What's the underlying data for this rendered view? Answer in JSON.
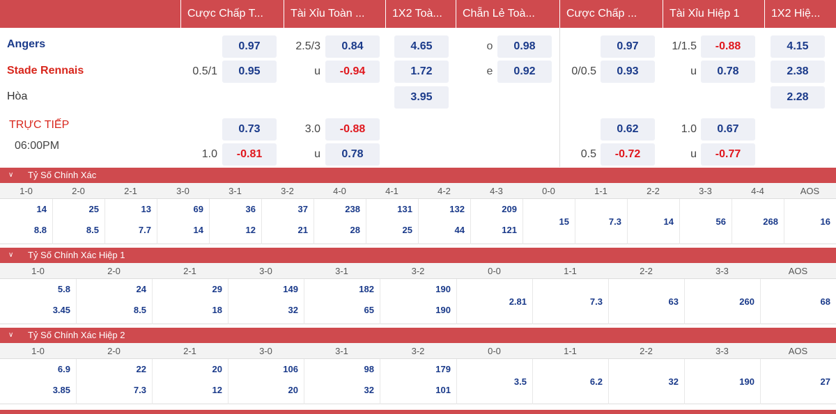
{
  "header": {
    "columns": [
      "Cược Chấp T...",
      "Tài Xỉu Toàn ...",
      "1X2 Toà...",
      "Chẵn Lẻ Toà...",
      "Cược Chấp ...",
      "Tài Xỉu Hiệp 1",
      "1X2 Hiệ..."
    ]
  },
  "match": {
    "home": "Angers",
    "away": "Stade Rennais",
    "draw": "Hòa",
    "status": "TRỰC TIẾP",
    "time": "06:00PM",
    "ft_handicap": {
      "line": "0.5/1",
      "home": "0.97",
      "away": "0.95"
    },
    "ft_ou": {
      "line": "2.5/3",
      "under_label": "u",
      "over": "0.84",
      "under": "-0.94"
    },
    "ft_1x2": {
      "home": "4.65",
      "away": "1.72",
      "draw": "3.95"
    },
    "ft_oe": {
      "odd_label": "o",
      "even_label": "e",
      "odd": "0.98",
      "even": "0.92"
    },
    "h1_handicap": {
      "line": "0/0.5",
      "home": "0.97",
      "away": "0.93"
    },
    "h1_ou": {
      "line": "1/1.5",
      "under_label": "u",
      "over": "-0.88",
      "under": "0.78"
    },
    "h1_1x2": {
      "home": "4.15",
      "away": "2.38",
      "draw": "2.28"
    },
    "alt": {
      "ft_handicap": {
        "line": "1.0",
        "home": "0.73",
        "away": "-0.81"
      },
      "ft_ou": {
        "line": "3.0",
        "under_label": "u",
        "over": "-0.88",
        "under": "0.78"
      },
      "h1_handicap": {
        "line": "0.5",
        "home": "0.62",
        "away": "-0.72"
      },
      "h1_ou": {
        "line": "1.0",
        "under_label": "u",
        "over": "0.67",
        "under": "-0.77"
      }
    }
  },
  "correct_score": {
    "title": "Tỷ Số Chính Xác",
    "headers": [
      "1-0",
      "2-0",
      "2-1",
      "3-0",
      "3-1",
      "3-2",
      "4-0",
      "4-1",
      "4-2",
      "4-3",
      "0-0",
      "1-1",
      "2-2",
      "3-3",
      "4-4",
      "AOS"
    ],
    "top": [
      "14",
      "25",
      "13",
      "69",
      "36",
      "37",
      "238",
      "131",
      "132",
      "209",
      "15",
      "7.3",
      "14",
      "56",
      "268",
      "16"
    ],
    "bottom": [
      "8.8",
      "8.5",
      "7.7",
      "14",
      "12",
      "21",
      "28",
      "25",
      "44",
      "121",
      "",
      "",
      "",
      "",
      "",
      ""
    ]
  },
  "correct_score_h1": {
    "title": "Tỷ Số Chính Xác Hiệp 1",
    "headers": [
      "1-0",
      "2-0",
      "2-1",
      "3-0",
      "3-1",
      "3-2",
      "0-0",
      "1-1",
      "2-2",
      "3-3",
      "AOS"
    ],
    "top": [
      "5.8",
      "24",
      "29",
      "149",
      "182",
      "190",
      "2.81",
      "7.3",
      "63",
      "260",
      "68"
    ],
    "bottom": [
      "3.45",
      "8.5",
      "18",
      "32",
      "65",
      "190",
      "",
      "",
      "",
      "",
      ""
    ]
  },
  "correct_score_h2": {
    "title": "Tỷ Số Chính Xác Hiệp 2",
    "headers": [
      "1-0",
      "2-0",
      "2-1",
      "3-0",
      "3-1",
      "3-2",
      "0-0",
      "1-1",
      "2-2",
      "3-3",
      "AOS"
    ],
    "top": [
      "6.9",
      "22",
      "20",
      "106",
      "98",
      "179",
      "3.5",
      "6.2",
      "32",
      "190",
      "27"
    ],
    "bottom": [
      "3.85",
      "7.3",
      "12",
      "20",
      "32",
      "101",
      "",
      "",
      "",
      "",
      ""
    ]
  },
  "colors": {
    "header_bg": "#cf4a4e",
    "odds_positive": "#1a3a8a",
    "odds_negative": "#e0171d",
    "away_team": "#d8261c"
  }
}
